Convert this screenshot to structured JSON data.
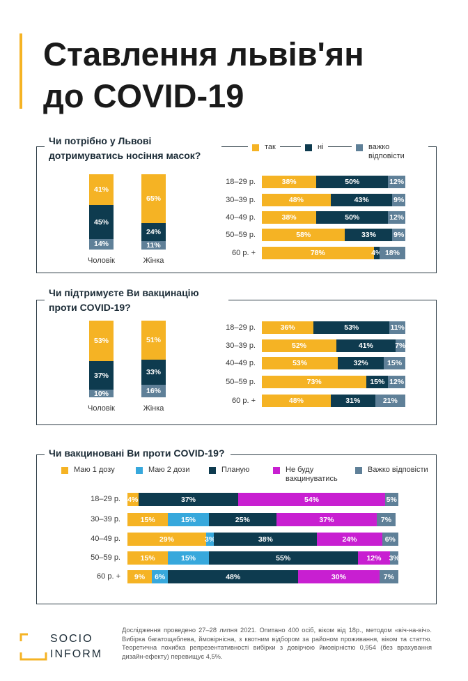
{
  "title": [
    "Ставлення львів'ян",
    "до COVID-19"
  ],
  "chart_data": [
    {
      "type": "stacked-bar",
      "title": "Чи потрібно у Львові дотримуватись носіння масок?",
      "categories": [
        "18–29 р.",
        "30–39 р.",
        "40–49 р.",
        "50–59 р.",
        "60 р. +"
      ],
      "series": [
        {
          "name": "так",
          "color": "#f5b324",
          "values": [
            38,
            48,
            38,
            58,
            78
          ],
          "value_labels": [
            "38%",
            "48%",
            "38%",
            "58%",
            "78%"
          ]
        },
        {
          "name": "ні",
          "color": "#0e3b4f",
          "values": [
            50,
            43,
            50,
            33,
            4
          ],
          "value_labels": [
            "50%",
            "43%",
            "50%",
            "33%",
            "4%"
          ]
        },
        {
          "name": "важко відповісти",
          "color": "#5f8098",
          "values": [
            12,
            9,
            12,
            9,
            18
          ],
          "value_labels": [
            "12%",
            "9%",
            "12%",
            "9%",
            "18%"
          ]
        }
      ],
      "gender": {
        "categories": [
          "Чоловік",
          "Жінка"
        ],
        "series": [
          {
            "values": [
              41,
              65
            ],
            "value_labels": [
              "41%",
              "65%"
            ]
          },
          {
            "values": [
              45,
              24
            ],
            "value_labels": [
              "45%",
              "24%"
            ]
          },
          {
            "values": [
              14,
              11
            ],
            "value_labels": [
              "14%",
              "11%"
            ]
          }
        ]
      }
    },
    {
      "type": "stacked-bar",
      "title": "Чи підтримуєте Ви вакцинацію проти COVID-19?",
      "categories": [
        "18–29 р.",
        "30–39 р.",
        "40–49 р.",
        "50–59 р.",
        "60 р. +"
      ],
      "series": [
        {
          "color": "#f5b324",
          "values": [
            36,
            52,
            53,
            73,
            48
          ],
          "value_labels": [
            "36%",
            "52%",
            "53%",
            "73%",
            "48%"
          ]
        },
        {
          "color": "#0e3b4f",
          "values": [
            53,
            41,
            32,
            15,
            31
          ],
          "value_labels": [
            "53%",
            "41%",
            "32%",
            "15%",
            "31%"
          ]
        },
        {
          "color": "#5f8098",
          "values": [
            11,
            7,
            15,
            12,
            21
          ],
          "value_labels": [
            "11%",
            "7%",
            "15%",
            "12%",
            "21%"
          ]
        }
      ],
      "gender": {
        "categories": [
          "Чоловік",
          "Жінка"
        ],
        "series": [
          {
            "values": [
              53,
              51
            ],
            "value_labels": [
              "53%",
              "51%"
            ]
          },
          {
            "values": [
              37,
              33
            ],
            "value_labels": [
              "37%",
              "33%"
            ]
          },
          {
            "values": [
              10,
              16
            ],
            "value_labels": [
              "10%",
              "16%"
            ]
          }
        ]
      }
    },
    {
      "type": "stacked-bar",
      "title": "Чи вакциновані Ви проти COVID-19?",
      "categories": [
        "18–29 р.",
        "30–39 р.",
        "40–49 р.",
        "50–59 р.",
        "60 р. +"
      ],
      "series": [
        {
          "name": "Маю 1 дозу",
          "color": "#f5b324",
          "values": [
            4,
            15,
            29,
            15,
            9
          ],
          "value_labels": [
            "4%",
            "15%",
            "29%",
            "15%",
            "9%"
          ]
        },
        {
          "name": "Маю 2 дози",
          "color": "#37a8dc",
          "values": [
            null,
            15,
            3,
            15,
            6
          ],
          "value_labels": [
            null,
            "15%",
            "3%",
            "15%",
            "6%"
          ]
        },
        {
          "name": "Планую",
          "color": "#0e3b4f",
          "values": [
            37,
            25,
            38,
            55,
            48
          ],
          "value_labels": [
            "37%",
            "25%",
            "38%",
            "55%",
            "48%"
          ]
        },
        {
          "name": "Не буду вакцинуватись",
          "color": "#c81fd1",
          "values": [
            54,
            37,
            24,
            12,
            30
          ],
          "value_labels": [
            "54%",
            "37%",
            "24%",
            "12%",
            "30%"
          ]
        },
        {
          "name": "Важко відповісти",
          "color": "#5f8098",
          "values": [
            5,
            7,
            6,
            3,
            7
          ],
          "value_labels": [
            "5%",
            "7%",
            "6%",
            "3%",
            "7%"
          ]
        }
      ]
    }
  ],
  "footer": "Дослідження проведено 27–28 липня 2021. Опитано 400 осіб, віком від 18р., методом «віч-на-віч». Вибірка багатощаблева, ймовірнісна, з квотним відбором за районом проживання, віком та статтю. Теоретична похибка репрезентативності вибірки з довірчою ймовірністю 0,954 (без врахування дизайн-ефекту) перевищує 4,5%.",
  "logo": [
    "SOCIO",
    "INFORM"
  ]
}
